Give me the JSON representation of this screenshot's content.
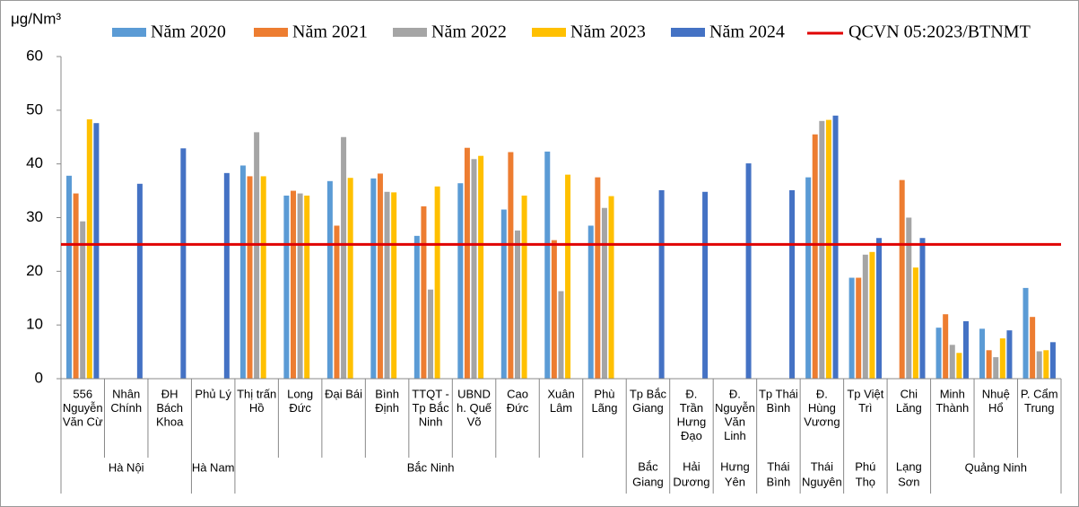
{
  "chart_data": {
    "type": "bar",
    "y_label": "μg/Nm³",
    "groups": [
      {
        "name": [
          "Hà Nội"
        ],
        "stations": [
          [
            "556",
            "Nguyễn",
            "Văn Cừ"
          ],
          [
            "Nhân",
            "Chính"
          ],
          [
            "ĐH",
            "Bách",
            "Khoa"
          ]
        ]
      },
      {
        "name": [
          "Hà Nam"
        ],
        "stations": [
          [
            "Phủ Lý"
          ]
        ]
      },
      {
        "name": [
          "Bắc Ninh"
        ],
        "stations": [
          [
            "Thị trấn",
            "Hồ"
          ],
          [
            "Long",
            "Đức"
          ],
          [
            "Đại Bái"
          ],
          [
            "Bình",
            "Định"
          ],
          [
            "TTQT -",
            "Tp Bắc",
            "Ninh"
          ],
          [
            "UBND",
            "h. Quế",
            "Võ"
          ],
          [
            "Cao",
            "Đức"
          ],
          [
            "Xuân",
            "Lâm"
          ],
          [
            "Phù",
            "Lãng"
          ]
        ]
      },
      {
        "name": [
          "Bắc",
          "Giang"
        ],
        "stations": [
          [
            "Tp Bắc",
            "Giang"
          ]
        ]
      },
      {
        "name": [
          "Hải",
          "Dương"
        ],
        "stations": [
          [
            "Đ.",
            "Trần",
            "Hưng",
            "Đạo"
          ]
        ]
      },
      {
        "name": [
          "Hưng",
          "Yên"
        ],
        "stations": [
          [
            "Đ.",
            "Nguyễn",
            "Văn",
            "Linh"
          ]
        ]
      },
      {
        "name": [
          "Thái",
          "Bình"
        ],
        "stations": [
          [
            "Tp Thái",
            "Bình"
          ]
        ]
      },
      {
        "name": [
          "Thái",
          "Nguyên"
        ],
        "stations": [
          [
            "Đ.",
            "Hùng",
            "Vương"
          ]
        ]
      },
      {
        "name": [
          "Phú",
          "Thọ"
        ],
        "stations": [
          [
            "Tp Việt",
            "Trì"
          ]
        ]
      },
      {
        "name": [
          "Lạng",
          "Sơn"
        ],
        "stations": [
          [
            "Chi",
            "Lăng"
          ]
        ]
      },
      {
        "name": [
          "Quảng Ninh"
        ],
        "stations": [
          [
            "Minh",
            "Thành"
          ],
          [
            "Nhuệ",
            "Hổ"
          ],
          [
            "P. Cẩm",
            "Trung"
          ]
        ]
      }
    ],
    "series": [
      {
        "name": "Năm 2020",
        "color": "#5b9bd5",
        "values": [
          37.8,
          null,
          null,
          null,
          39.7,
          34.1,
          36.8,
          37.3,
          26.6,
          36.4,
          31.5,
          42.3,
          28.5,
          null,
          null,
          null,
          null,
          37.5,
          18.8,
          null,
          9.5,
          9.3,
          16.9
        ]
      },
      {
        "name": "Năm 2021",
        "color": "#ed7d31",
        "values": [
          34.5,
          null,
          null,
          null,
          37.7,
          35.0,
          28.5,
          38.2,
          32.1,
          43.0,
          42.2,
          25.8,
          37.5,
          null,
          null,
          null,
          null,
          45.5,
          18.8,
          37.0,
          12.0,
          5.3,
          11.5
        ]
      },
      {
        "name": "Năm 2022",
        "color": "#a5a5a5",
        "values": [
          29.3,
          null,
          null,
          null,
          45.9,
          34.5,
          45.0,
          34.8,
          16.6,
          40.9,
          27.6,
          16.3,
          31.8,
          null,
          null,
          null,
          null,
          48.0,
          23.1,
          30.0,
          6.3,
          4.0,
          5.1
        ]
      },
      {
        "name": "Năm 2023",
        "color": "#ffc000",
        "values": [
          48.3,
          null,
          null,
          null,
          37.7,
          34.1,
          37.4,
          34.7,
          35.8,
          41.5,
          34.1,
          38.0,
          34.0,
          null,
          null,
          null,
          null,
          48.2,
          23.6,
          20.7,
          4.8,
          7.5,
          5.3
        ]
      },
      {
        "name": "Năm 2024",
        "color": "#4472c4",
        "values": [
          47.6,
          36.3,
          42.9,
          38.3,
          null,
          null,
          null,
          null,
          null,
          null,
          null,
          null,
          null,
          35.1,
          34.8,
          40.1,
          35.1,
          49.0,
          26.2,
          26.2,
          10.7,
          9.0,
          6.8
        ]
      }
    ],
    "reference": {
      "name": "QCVN 05:2023/BTNMT",
      "value": 25,
      "color": "#e00000"
    },
    "ylim": [
      0,
      60
    ],
    "yticks": [
      0,
      10,
      20,
      30,
      40,
      50,
      60
    ]
  }
}
